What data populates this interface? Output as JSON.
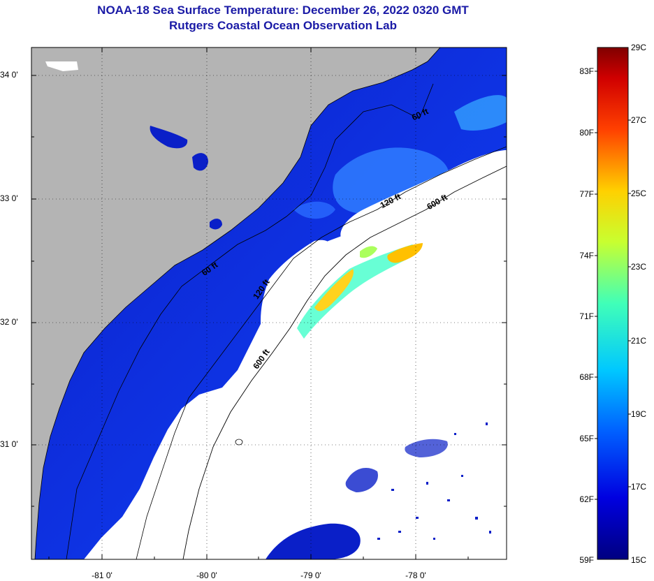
{
  "title": "NOAA-18 Sea Surface Temperature:  December 26, 2022 0320 GMT",
  "subtitle": "Rutgers Coastal Ocean Observation Lab",
  "lat_labels": [
    "34 0'",
    "33 0'",
    "32 0'",
    "31 0'"
  ],
  "lon_labels": [
    "-81 0'",
    "-80 0'",
    "-79 0'",
    "-78 0'"
  ],
  "contour_labels": [
    "60 ft",
    "120 ft",
    "600 ft",
    "60 ft",
    "120 ft",
    "600 ft"
  ],
  "colorbar": {
    "fahrenheit": [
      "83F",
      "80F",
      "77F",
      "74F",
      "71F",
      "68F",
      "65F",
      "62F",
      "59F"
    ],
    "celsius": [
      "29C",
      "27C",
      "25C",
      "23C",
      "21C",
      "19C",
      "17C",
      "15C"
    ]
  },
  "colors": {
    "land": "#b4b4b4",
    "title": "#1a1aa6",
    "no_data": "#ffffff",
    "cold_water": "#0a1fc8",
    "cool_water": "#2a7bff",
    "warm_water": "#ffd21e"
  }
}
